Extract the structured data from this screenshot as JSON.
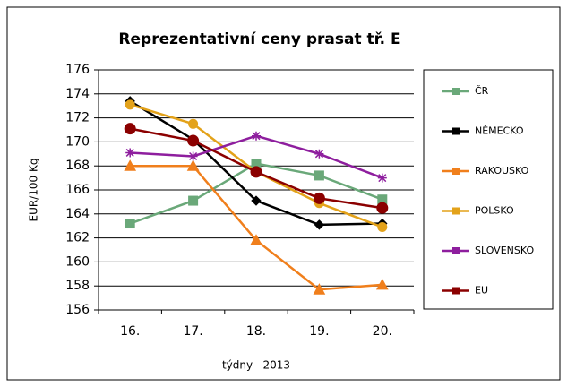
{
  "chart_data": {
    "type": "line",
    "title": "Reprezentativní ceny prasat tř. E",
    "y_label": "EUR/100 Kg",
    "x_label": "týdny   2013",
    "categories": [
      "16.",
      "17.",
      "18.",
      "19.",
      "20."
    ],
    "ylim": [
      156,
      176
    ],
    "yticks": [
      156,
      158,
      160,
      162,
      164,
      166,
      168,
      170,
      172,
      174,
      176
    ],
    "grid": true,
    "legend": "right",
    "series": [
      {
        "name": "ČR",
        "color": "#6aa879",
        "marker": "square",
        "values": [
          163.2,
          165.1,
          168.2,
          167.2,
          165.2
        ]
      },
      {
        "name": "NĚMECKO",
        "color": "#000000",
        "marker": "diamond",
        "values": [
          173.4,
          170.2,
          165.1,
          163.1,
          163.2
        ]
      },
      {
        "name": "RAKOUSKO",
        "color": "#f07f1c",
        "marker": "triangle",
        "values": [
          168,
          168,
          161.8,
          157.7,
          158.1
        ]
      },
      {
        "name": "POLSKO",
        "color": "#e3a21a",
        "marker": "circle",
        "values": [
          173.1,
          171.5,
          167.5,
          164.9,
          162.9
        ]
      },
      {
        "name": "SLOVENSKO",
        "color": "#8e1e9e",
        "marker": "star",
        "values": [
          169.1,
          168.8,
          170.5,
          169,
          167
        ]
      },
      {
        "name": "EU",
        "color": "#8b0000",
        "marker": "bigcircle",
        "values": [
          171.1,
          170.1,
          167.5,
          165.3,
          164.5
        ]
      }
    ]
  }
}
